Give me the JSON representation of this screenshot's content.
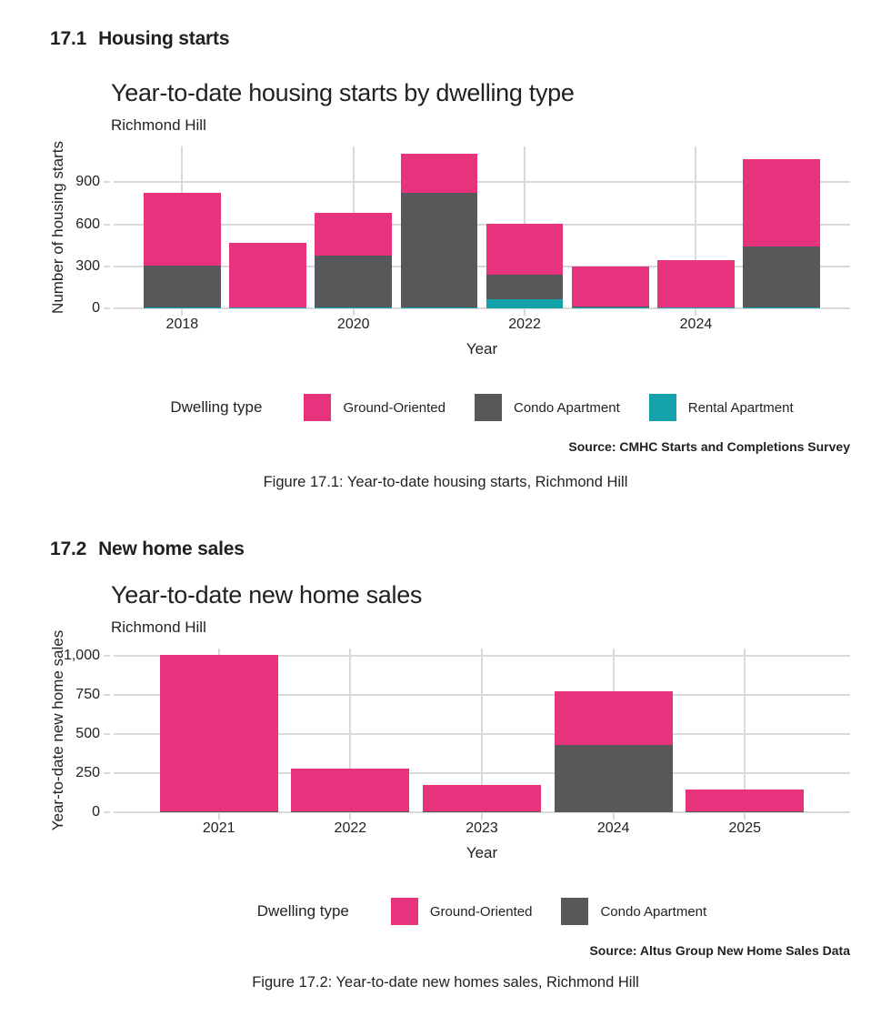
{
  "page": {
    "background": "#FFFFFF",
    "text_color": "#231F20",
    "grid_color": "#D9D9D9"
  },
  "sections": [
    {
      "number": "17.1",
      "heading": "Housing starts"
    },
    {
      "number": "17.2",
      "heading": "New home sales"
    }
  ],
  "chart_data": [
    {
      "type": "bar",
      "stacked": true,
      "title": "Year-to-date housing starts by dwelling type",
      "subtitle": "Richmond Hill",
      "xlabel": "Year",
      "ylabel": "Number of housing starts",
      "categories": [
        "2018",
        "2019",
        "2020",
        "2021",
        "2022",
        "2023",
        "2024",
        "2025"
      ],
      "x_labeled_categories": [
        "2018",
        "2020",
        "2022",
        "2024"
      ],
      "yticks": [
        {
          "value": 0,
          "label": "0"
        },
        {
          "value": 300,
          "label": "300"
        },
        {
          "value": 600,
          "label": "600"
        },
        {
          "value": 900,
          "label": "900"
        }
      ],
      "ylim": [
        0,
        1155
      ],
      "grid": true,
      "legend_position": "bottom",
      "legend_title": "Dwelling type",
      "series": [
        {
          "name": "Rental Apartment",
          "color": "#14A2AB",
          "values": [
            6,
            6,
            6,
            6,
            65,
            6,
            6,
            6
          ]
        },
        {
          "name": "Condo Apartment",
          "color": "#58585A",
          "values": [
            300,
            0,
            368,
            815,
            175,
            10,
            0,
            437
          ]
        },
        {
          "name": "Ground-Oriented",
          "color": "#E7337E",
          "values": [
            520,
            462,
            310,
            285,
            365,
            285,
            340,
            620
          ]
        }
      ],
      "legend": [
        {
          "label": "Ground-Oriented",
          "color": "#E7337E"
        },
        {
          "label": "Condo Apartment",
          "color": "#58585A"
        },
        {
          "label": "Rental Apartment",
          "color": "#14A2AB"
        }
      ],
      "source": "Source: CMHC Starts and Completions Survey",
      "caption": "Figure 17.1: Year-to-date housing starts, Richmond Hill"
    },
    {
      "type": "bar",
      "stacked": true,
      "title": "Year-to-date new home sales",
      "subtitle": "Richmond Hill",
      "xlabel": "Year",
      "ylabel": "Year-to-date new home sales",
      "categories": [
        "2021",
        "2022",
        "2023",
        "2024",
        "2025"
      ],
      "x_labeled_categories": [
        "2021",
        "2022",
        "2023",
        "2024",
        "2025"
      ],
      "yticks": [
        {
          "value": 0,
          "label": "0"
        },
        {
          "value": 250,
          "label": "250"
        },
        {
          "value": 500,
          "label": "500"
        },
        {
          "value": 750,
          "label": "750"
        },
        {
          "value": 1000,
          "label": "1,000"
        }
      ],
      "ylim": [
        0,
        1046
      ],
      "grid": true,
      "legend_position": "bottom",
      "legend_title": "Dwelling type",
      "series": [
        {
          "name": "Condo Apartment",
          "color": "#58585A",
          "values": [
            8,
            8,
            8,
            430,
            8
          ]
        },
        {
          "name": "Ground-Oriented",
          "color": "#E7337E",
          "values": [
            1000,
            270,
            165,
            345,
            140
          ]
        }
      ],
      "legend": [
        {
          "label": "Ground-Oriented",
          "color": "#E7337E"
        },
        {
          "label": "Condo Apartment",
          "color": "#58585A"
        }
      ],
      "source": "Source: Altus Group New Home Sales Data",
      "caption": "Figure 17.2: Year-to-date new homes sales, Richmond Hill"
    }
  ]
}
